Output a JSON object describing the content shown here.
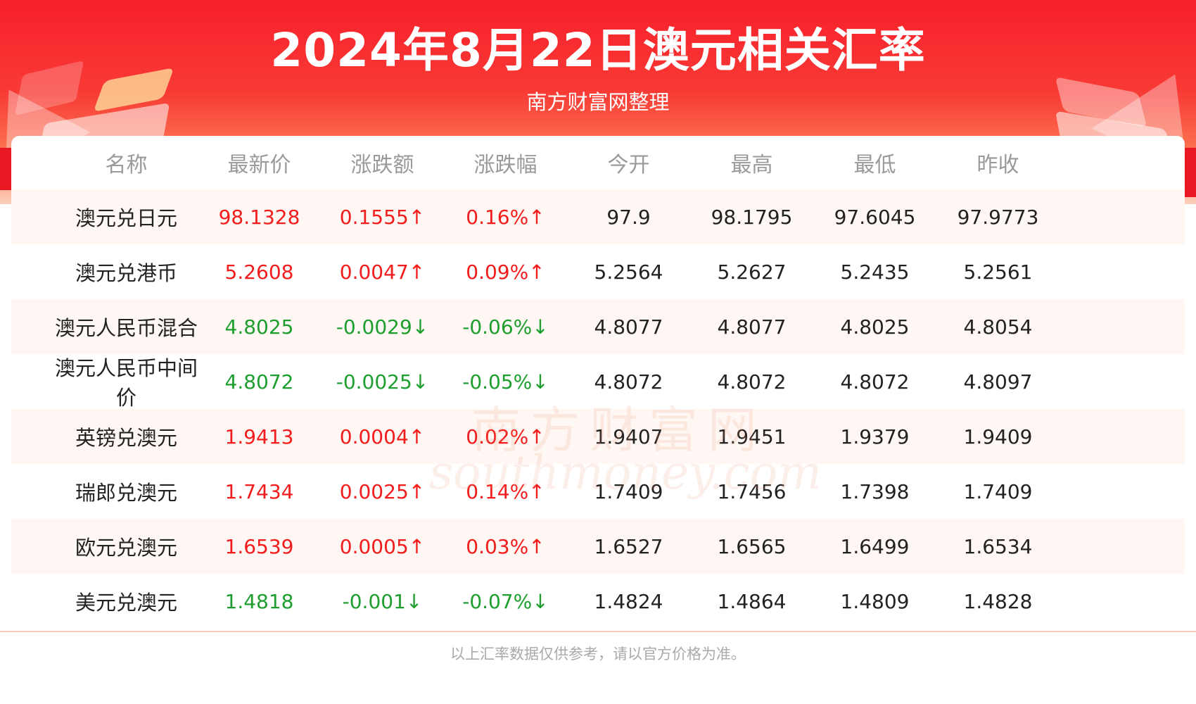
{
  "header": {
    "title": "2024年8月22日澳元相关汇率",
    "subtitle": "南方财富网整理"
  },
  "table": {
    "columns": [
      "名称",
      "最新价",
      "涨跌额",
      "涨跌幅",
      "今开",
      "最高",
      "最低",
      "昨收"
    ],
    "rows": [
      {
        "name": "澳元兑日元",
        "latest": "98.1328",
        "change": "0.1555↑",
        "pct": "0.16%↑",
        "open": "97.9",
        "high": "98.1795",
        "low": "97.6045",
        "prev": "97.9773",
        "trend": "up"
      },
      {
        "name": "澳元兑港币",
        "latest": "5.2608",
        "change": "0.0047↑",
        "pct": "0.09%↑",
        "open": "5.2564",
        "high": "5.2627",
        "low": "5.2435",
        "prev": "5.2561",
        "trend": "up"
      },
      {
        "name": "澳元人民币混合",
        "latest": "4.8025",
        "change": "-0.0029↓",
        "pct": "-0.06%↓",
        "open": "4.8077",
        "high": "4.8077",
        "low": "4.8025",
        "prev": "4.8054",
        "trend": "down"
      },
      {
        "name": "澳元人民币中间价",
        "latest": "4.8072",
        "change": "-0.0025↓",
        "pct": "-0.05%↓",
        "open": "4.8072",
        "high": "4.8072",
        "low": "4.8072",
        "prev": "4.8097",
        "trend": "down"
      },
      {
        "name": "英镑兑澳元",
        "latest": "1.9413",
        "change": "0.0004↑",
        "pct": "0.02%↑",
        "open": "1.9407",
        "high": "1.9451",
        "low": "1.9379",
        "prev": "1.9409",
        "trend": "up"
      },
      {
        "name": "瑞郎兑澳元",
        "latest": "1.7434",
        "change": "0.0025↑",
        "pct": "0.14%↑",
        "open": "1.7409",
        "high": "1.7456",
        "low": "1.7398",
        "prev": "1.7409",
        "trend": "up"
      },
      {
        "name": "欧元兑澳元",
        "latest": "1.6539",
        "change": "0.0005↑",
        "pct": "0.03%↑",
        "open": "1.6527",
        "high": "1.6565",
        "low": "1.6499",
        "prev": "1.6534",
        "trend": "up"
      },
      {
        "name": "美元兑澳元",
        "latest": "1.4818",
        "change": "-0.001↓",
        "pct": "-0.07%↓",
        "open": "1.4824",
        "high": "1.4864",
        "low": "1.4809",
        "prev": "1.4828",
        "trend": "down"
      }
    ]
  },
  "watermark": {
    "cn": "南方财富网",
    "en": "southmoney.com"
  },
  "footer": {
    "note": "以上汇率数据仅供参考，请以官方价格为准。"
  },
  "colors": {
    "up": "#f21c1c",
    "down": "#1e9e2e",
    "header_red": "#f7202b"
  }
}
